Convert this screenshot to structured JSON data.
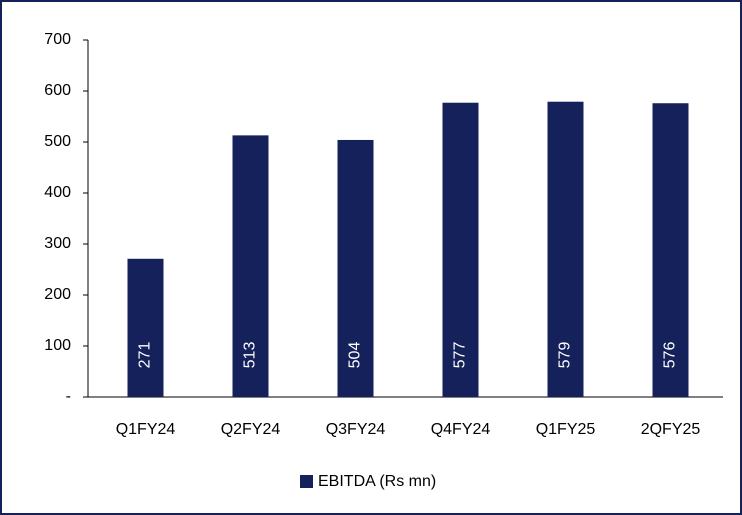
{
  "chart_data": {
    "type": "bar",
    "categories": [
      "Q1FY24",
      "Q2FY24",
      "Q3FY24",
      "Q4FY24",
      "Q1FY25",
      "2QFY25"
    ],
    "series": [
      {
        "name": "EBITDA (Rs mn)",
        "color": "#14215a",
        "values": [
          271,
          513,
          504,
          577,
          579,
          576
        ]
      }
    ],
    "ylim": [
      0,
      700
    ],
    "yticks": [
      {
        "value": 0,
        "label": "-"
      },
      100,
      200,
      300,
      400,
      500,
      600,
      700
    ],
    "legend": "bottom"
  }
}
